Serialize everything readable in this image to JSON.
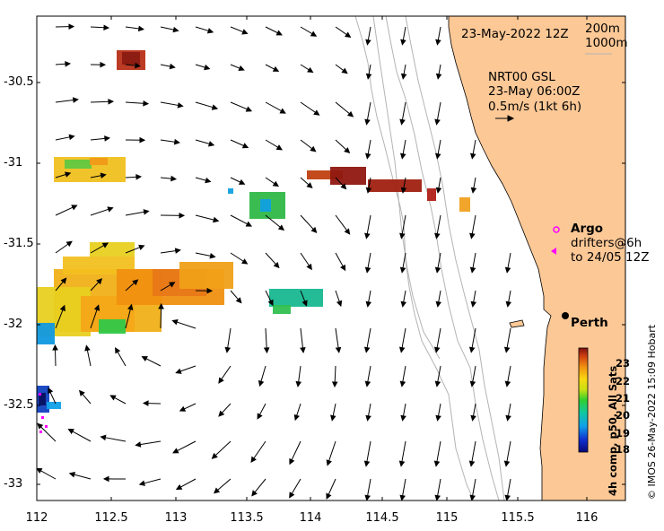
{
  "axes": {
    "x_ticks": [
      "112",
      "112.5",
      "113",
      "113.5",
      "114",
      "114.5",
      "115",
      "115.5",
      "116"
    ],
    "y_ticks": [
      "-30.5",
      "-31",
      "-31.5",
      "-32",
      "-32.5",
      "-33"
    ],
    "xlim": [
      112,
      116.3
    ],
    "ylim": [
      -33.1,
      -30.0
    ]
  },
  "labels": {
    "date": "23-May-2022 12Z",
    "contour_shallow": "200m",
    "contour_deep": "1000m",
    "current_source": "NRT00 GSL",
    "current_time": "23-May 06:00Z",
    "current_scale": "0.5m/s (1kt 6h)",
    "argo": "Argo",
    "drifters_line1": "drifters@6h",
    "drifters_line2": "to 24/05 12Z",
    "city": "Perth",
    "colorbar_title": "4h comp, p50, All Sats",
    "credit": "© IMOS 26-May-2022 15:09 Hobart"
  },
  "colorbar": {
    "ticks": [
      "23",
      "22",
      "21",
      "20",
      "19",
      "18"
    ],
    "range": [
      18,
      23.8
    ]
  },
  "colors": {
    "land": "#fcc896",
    "contour": "#b4b4b4",
    "arrow": "#000000",
    "argo_marker": "#ff00ff",
    "drifter": "#ff00ff"
  }
}
